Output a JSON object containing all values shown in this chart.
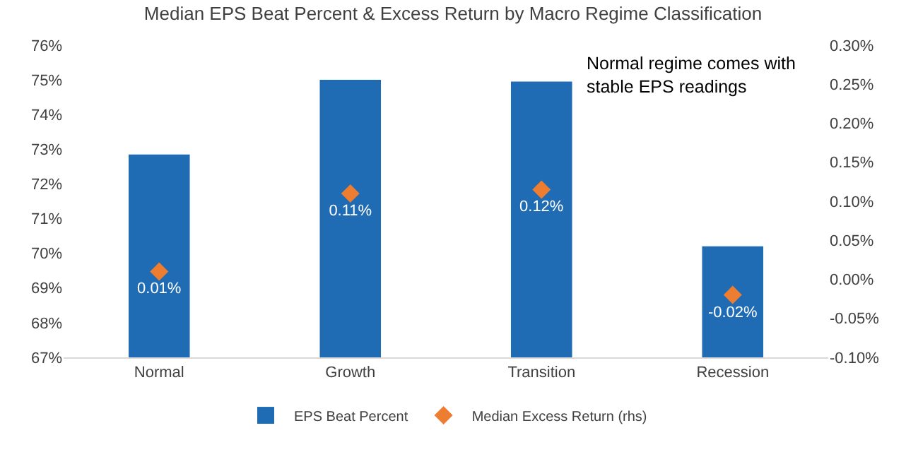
{
  "chart_data": {
    "type": "bar",
    "title": "Median EPS Beat Percent & Excess Return by Macro Regime Classification",
    "categories": [
      "Normal",
      "Growth",
      "Transition",
      "Recession"
    ],
    "series": [
      {
        "name": "EPS Beat Percent",
        "color": "#1f6cb5",
        "values": [
          72.85,
          75.0,
          74.95,
          70.2
        ]
      },
      {
        "name": "Median Excess Return (rhs)",
        "type": "scatter",
        "axis": "y2",
        "color": "#ed7d31",
        "values": [
          0.01,
          0.11,
          0.115,
          -0.02
        ],
        "value_labels": [
          "0.01%",
          "0.11%",
          "0.12%",
          "-0.02%"
        ]
      }
    ],
    "ylim": [
      67,
      76
    ],
    "yticks": [
      {
        "value": 67,
        "label": "67%"
      },
      {
        "value": 68,
        "label": "68%"
      },
      {
        "value": 69,
        "label": "69%"
      },
      {
        "value": 70,
        "label": "70%"
      },
      {
        "value": 71,
        "label": "71%"
      },
      {
        "value": 72,
        "label": "72%"
      },
      {
        "value": 73,
        "label": "73%"
      },
      {
        "value": 74,
        "label": "74%"
      },
      {
        "value": 75,
        "label": "75%"
      },
      {
        "value": 76,
        "label": "76%"
      }
    ],
    "y2lim": [
      -0.1,
      0.3
    ],
    "y2ticks": [
      {
        "value": -0.1,
        "label": "-0.10%"
      },
      {
        "value": -0.05,
        "label": "-0.05%"
      },
      {
        "value": 0,
        "label": "0.00%"
      },
      {
        "value": 0.05,
        "label": "0.05%"
      },
      {
        "value": 0.1,
        "label": "0.10%"
      },
      {
        "value": 0.15,
        "label": "0.15%"
      },
      {
        "value": 0.2,
        "label": "0.20%"
      },
      {
        "value": 0.25,
        "label": "0.25%"
      },
      {
        "value": 0.3,
        "label": "0.30%"
      }
    ],
    "marker": "diamond",
    "legend": "bottom",
    "annotations": [
      "Normal regime comes with stable EPS readings"
    ]
  }
}
